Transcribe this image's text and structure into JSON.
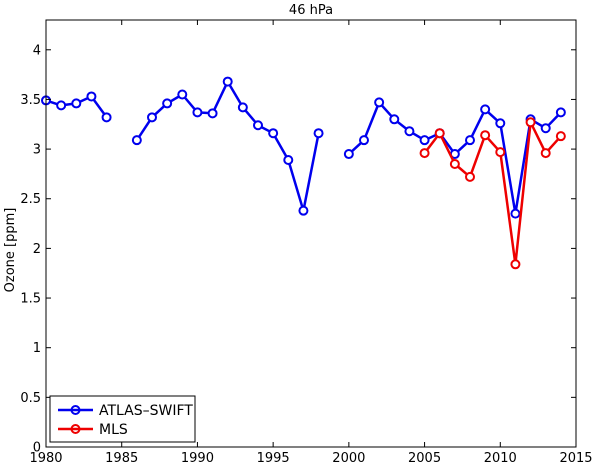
{
  "chart_data": {
    "type": "line",
    "title": "46 hPa",
    "xlabel": "",
    "ylabel": "Ozone [ppm]",
    "xlim": [
      1980,
      2015
    ],
    "ylim": [
      0,
      4.3
    ],
    "xticks": [
      1980,
      1985,
      1990,
      1995,
      2000,
      2005,
      2010,
      2015
    ],
    "yticks": [
      0,
      0.5,
      1,
      1.5,
      2,
      2.5,
      3,
      3.5,
      4
    ],
    "ytick_labels": [
      "0",
      "0.5",
      "1",
      "1.5",
      "2",
      "2.5",
      "3",
      "3.5",
      "4"
    ],
    "grid": false,
    "legend_position": "bottom-left",
    "series": [
      {
        "name": "ATLAS–SWIFT",
        "color": "#0000ee",
        "marker": "circle",
        "segments": [
          {
            "x": [
              1980,
              1981,
              1982,
              1983,
              1984
            ],
            "y": [
              3.49,
              3.44,
              3.46,
              3.53,
              3.32
            ]
          },
          {
            "x": [
              1986,
              1987,
              1988,
              1989,
              1990,
              1991,
              1992,
              1993,
              1994,
              1995,
              1996,
              1997,
              1998
            ],
            "y": [
              3.09,
              3.32,
              3.46,
              3.55,
              3.37,
              3.36,
              3.68,
              3.42,
              3.24,
              3.16,
              2.89,
              2.38,
              3.16
            ]
          },
          {
            "x": [
              2000,
              2001,
              2002,
              2003,
              2004,
              2005,
              2006,
              2007,
              2008,
              2009,
              2010,
              2011,
              2012,
              2013,
              2014
            ],
            "y": [
              2.95,
              3.09,
              3.47,
              3.3,
              3.18,
              3.09,
              3.16,
              2.95,
              3.09,
              3.4,
              3.26,
              2.35,
              3.3,
              3.21,
              3.37
            ]
          }
        ]
      },
      {
        "name": "MLS",
        "color": "#ee0000",
        "marker": "circle",
        "segments": [
          {
            "x": [
              2005,
              2006,
              2007,
              2008,
              2009,
              2010,
              2011,
              2012,
              2013,
              2014
            ],
            "y": [
              2.96,
              3.16,
              2.85,
              2.72,
              3.14,
              2.97,
              1.84,
              3.27,
              2.96,
              3.13
            ]
          }
        ]
      }
    ]
  }
}
